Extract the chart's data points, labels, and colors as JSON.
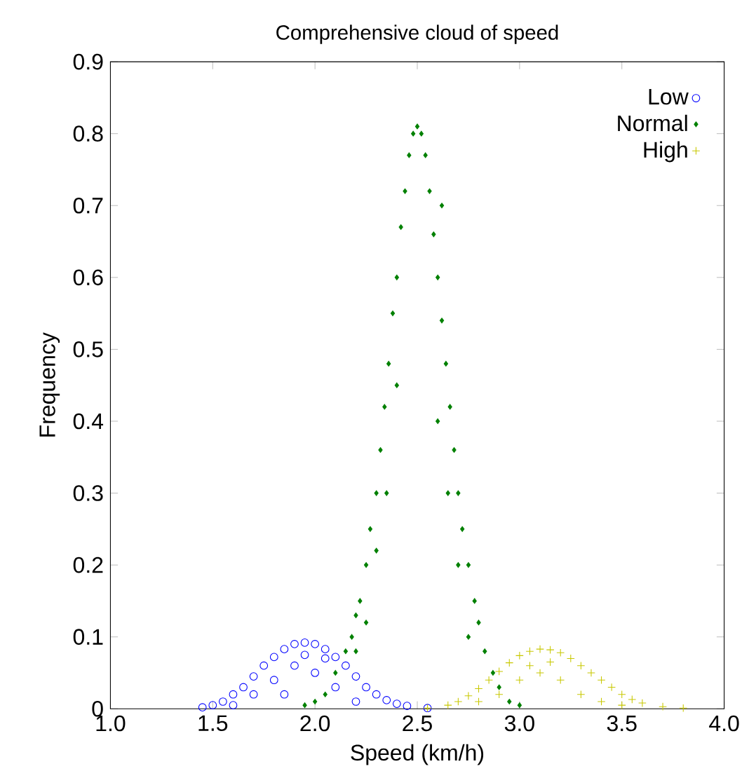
{
  "chart_data": {
    "type": "scatter",
    "title": "Comprehensive cloud of speed",
    "xlabel": "Speed (km/h)",
    "ylabel": "Frequency",
    "xlim": [
      1.0,
      4.0
    ],
    "ylim": [
      0,
      0.9
    ],
    "xticks": [
      {
        "value": 1.0,
        "label": "1.0"
      },
      {
        "value": 1.5,
        "label": "1.5"
      },
      {
        "value": 2.0,
        "label": "2.0"
      },
      {
        "value": 2.5,
        "label": "2.5"
      },
      {
        "value": 3.0,
        "label": "3.0"
      },
      {
        "value": 3.5,
        "label": "3.5"
      },
      {
        "value": 4.0,
        "label": "4.0"
      }
    ],
    "yticks": [
      0,
      0.1,
      0.2,
      0.3,
      0.4,
      0.5,
      0.6,
      0.7,
      0.8,
      0.9
    ],
    "legend": "top right",
    "series": [
      {
        "name": "Low",
        "color": "#0000ff",
        "marker": "circle",
        "x": [
          1.45,
          1.5,
          1.55,
          1.6,
          1.65,
          1.7,
          1.75,
          1.8,
          1.85,
          1.9,
          1.95,
          2.0,
          2.05,
          2.1,
          2.15,
          2.2,
          2.25,
          2.3,
          2.35,
          2.4,
          2.45,
          2.55,
          1.7,
          1.8,
          1.9,
          2.0,
          2.1,
          2.2,
          1.6,
          1.85,
          2.05,
          1.95
        ],
        "values": [
          0.002,
          0.005,
          0.01,
          0.02,
          0.03,
          0.045,
          0.06,
          0.072,
          0.083,
          0.09,
          0.092,
          0.09,
          0.083,
          0.072,
          0.06,
          0.045,
          0.03,
          0.02,
          0.012,
          0.007,
          0.004,
          0.001,
          0.02,
          0.04,
          0.06,
          0.05,
          0.03,
          0.01,
          0.005,
          0.02,
          0.07,
          0.075
        ]
      },
      {
        "name": "Normal",
        "color": "#008000",
        "marker": "diamond",
        "x": [
          2.05,
          2.1,
          2.15,
          2.18,
          2.2,
          2.22,
          2.25,
          2.27,
          2.3,
          2.32,
          2.34,
          2.36,
          2.38,
          2.4,
          2.42,
          2.44,
          2.46,
          2.48,
          2.5,
          2.52,
          2.54,
          2.56,
          2.58,
          2.6,
          2.62,
          2.64,
          2.66,
          2.68,
          2.7,
          2.72,
          2.75,
          2.78,
          2.8,
          2.83,
          2.87,
          2.9,
          2.95,
          2.3,
          2.35,
          2.4,
          2.2,
          2.25,
          2.6,
          2.65,
          2.7,
          2.75,
          2.62,
          1.95,
          2.0,
          3.0
        ],
        "values": [
          0.02,
          0.05,
          0.08,
          0.1,
          0.13,
          0.15,
          0.2,
          0.25,
          0.3,
          0.36,
          0.42,
          0.48,
          0.55,
          0.6,
          0.67,
          0.72,
          0.77,
          0.8,
          0.81,
          0.8,
          0.77,
          0.72,
          0.66,
          0.6,
          0.54,
          0.48,
          0.42,
          0.36,
          0.3,
          0.25,
          0.2,
          0.15,
          0.12,
          0.08,
          0.05,
          0.03,
          0.01,
          0.22,
          0.3,
          0.45,
          0.08,
          0.12,
          0.4,
          0.3,
          0.2,
          0.1,
          0.7,
          0.005,
          0.01,
          0.005
        ]
      },
      {
        "name": "High",
        "color": "#c8c800",
        "marker": "cross",
        "x": [
          2.55,
          2.65,
          2.7,
          2.75,
          2.8,
          2.85,
          2.9,
          2.95,
          3.0,
          3.05,
          3.1,
          3.15,
          3.2,
          3.25,
          3.3,
          3.35,
          3.4,
          3.45,
          3.5,
          3.55,
          3.6,
          3.7,
          3.8,
          2.9,
          3.0,
          3.1,
          3.2,
          3.3,
          3.4,
          3.05,
          3.15,
          2.8,
          3.5
        ],
        "values": [
          0.001,
          0.005,
          0.01,
          0.018,
          0.028,
          0.04,
          0.052,
          0.064,
          0.074,
          0.08,
          0.083,
          0.082,
          0.078,
          0.07,
          0.06,
          0.05,
          0.04,
          0.03,
          0.02,
          0.013,
          0.008,
          0.003,
          0.001,
          0.02,
          0.04,
          0.05,
          0.04,
          0.02,
          0.01,
          0.06,
          0.065,
          0.01,
          0.005
        ]
      }
    ]
  }
}
